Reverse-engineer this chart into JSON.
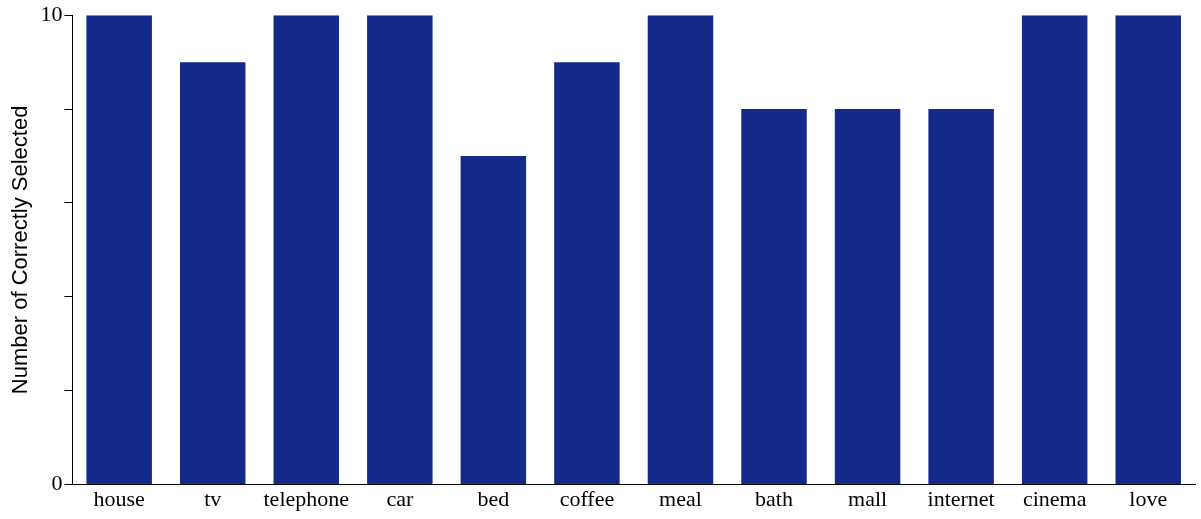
{
  "chart_data": {
    "type": "bar",
    "ylabel": "Number of Correctly Selected",
    "categories": [
      "house",
      "tv",
      "telephone",
      "car",
      "bed",
      "coffee",
      "meal",
      "bath",
      "mall",
      "internet",
      "cinema",
      "love"
    ],
    "values": [
      10,
      9,
      10,
      10,
      7,
      9,
      10,
      8,
      8,
      8,
      10,
      10
    ],
    "color": "#142a8a",
    "ylim": [
      0,
      10
    ],
    "yticks": [
      0,
      {
        "value": 2,
        "label": null
      },
      {
        "value": 4,
        "label": null
      },
      {
        "value": 6,
        "label": null
      },
      {
        "value": 8,
        "label": null
      },
      10
    ],
    "grid": false,
    "legend": false
  }
}
